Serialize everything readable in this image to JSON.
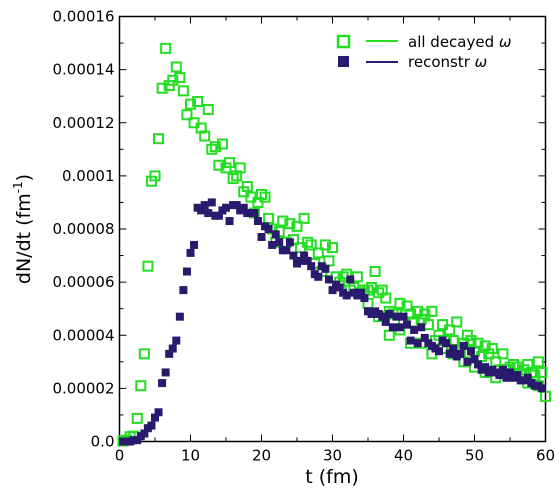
{
  "chart_data": {
    "type": "scatter",
    "xlabel": "t (fm)",
    "ylabel": "dN/dt (fm",
    "ylabel_sup": "-1",
    "ylabel_close": ")",
    "xlim": [
      0,
      60
    ],
    "ylim": [
      0,
      0.00016
    ],
    "x_ticks": [
      0,
      10,
      20,
      30,
      40,
      50,
      60
    ],
    "x_tick_labels": [
      "0",
      "10",
      "20",
      "30",
      "40",
      "50",
      "60"
    ],
    "y_ticks": [
      0,
      2e-05,
      4e-05,
      6e-05,
      8e-05,
      0.0001,
      0.00012,
      0.00014,
      0.00016
    ],
    "y_tick_labels": [
      "0.0",
      "0.00002",
      "0.00004",
      "0.00006",
      "0.00008",
      "0.0001",
      "0.00012",
      "0.00014",
      "0.00016"
    ],
    "grid": false,
    "legend_position": "top-right",
    "series": [
      {
        "name": "all decayed ",
        "name_symbol": "ω",
        "color": "#22dd22",
        "marker": "open-square",
        "x": [
          0.5,
          1.0,
          1.5,
          2.0,
          2.5,
          3.0,
          3.5,
          4.0,
          4.5,
          5.0,
          5.5,
          6.0,
          6.5,
          7.0,
          7.5,
          8.0,
          8.5,
          9.0,
          9.5,
          10.0,
          10.5,
          11.0,
          11.5,
          12.0,
          12.5,
          13.0,
          13.5,
          14.0,
          14.5,
          15.0,
          15.5,
          16.0,
          16.5,
          17.0,
          17.5,
          18.0,
          18.5,
          19.0,
          19.5,
          20.0,
          20.5,
          21.0,
          21.5,
          22.0,
          22.5,
          23.0,
          23.5,
          24.0,
          24.5,
          25.0,
          25.5,
          26.0,
          26.5,
          27.0,
          27.5,
          28.0,
          28.5,
          29.0,
          29.5,
          30.0,
          30.5,
          31.0,
          31.5,
          32.0,
          32.5,
          33.0,
          33.5,
          34.0,
          34.5,
          35.0,
          35.5,
          36.0,
          36.5,
          37.0,
          37.5,
          38.0,
          38.5,
          39.0,
          39.5,
          40.0,
          40.5,
          41.0,
          41.5,
          42.0,
          42.5,
          43.0,
          43.5,
          44.0,
          44.5,
          45.0,
          45.5,
          46.0,
          46.5,
          47.0,
          47.5,
          48.0,
          48.5,
          49.0,
          49.5,
          50.0,
          50.5,
          51.0,
          51.5,
          52.0,
          52.5,
          53.0,
          53.5,
          54.0,
          54.5,
          55.0,
          55.5,
          56.0,
          56.5,
          57.0,
          57.5,
          58.0,
          58.5,
          59.0,
          59.5
        ],
        "y": [
          2e-07,
          5e-07,
          1.8e-06,
          2e-06,
          8.7e-06,
          2.1e-05,
          3.3e-05,
          6.6e-05,
          9.8e-05,
          0.0001,
          0.000114,
          0.000133,
          0.000148,
          0.000134,
          0.000136,
          0.000141,
          0.000137,
          0.000132,
          0.000123,
          0.000127,
          0.00012,
          0.000128,
          0.000118,
          0.000115,
          0.000125,
          0.00011,
          0.000111,
          0.000104,
          0.000112,
          0.000103,
          0.000105,
          9.9e-05,
          0.0001,
          0.000103,
          9.4e-05,
          9.6e-05,
          9.2e-05,
          8.6e-05,
          9e-05,
          9.3e-05,
          9.2e-05,
          8.4e-05,
          8e-05,
          7.5e-05,
          7.9e-05,
          8.3e-05,
          7.5e-05,
          8.2e-05,
          7.6e-05,
          8.1e-05,
          7.3e-05,
          8.4e-05,
          7.5e-05,
          7.4e-05,
          6.7e-05,
          7.1e-05,
          6.4e-05,
          7.4e-05,
          6.8e-05,
          7.3e-05,
          6.2e-05,
          6e-05,
          6.2e-05,
          6.3e-05,
          5.7e-05,
          5.8e-05,
          6.2e-05,
          5.6e-05,
          5.7e-05,
          5.7e-05,
          5.8e-05,
          6.4e-05,
          5.6e-05,
          5.7e-05,
          5.4e-05,
          4.9e-05,
          4.8e-05,
          4.8e-05,
          5.2e-05,
          4.5e-05,
          5.1e-05,
          4.8e-05,
          4.5e-05,
          4.9e-05,
          4.6e-05,
          4.8e-05,
          4.4e-05,
          4.9e-05,
          3.8e-05,
          4e-05,
          4.4e-05,
          3.8e-05,
          4.2e-05,
          3.8e-05,
          4.5e-05,
          3.4e-05,
          3.7e-05,
          4e-05,
          3.8e-05,
          3.4e-05,
          3.7e-05,
          3.2e-05,
          3.6e-05,
          3.3e-05,
          3.5e-05,
          3e-05,
          2.7e-05,
          3.3e-05,
          2.7e-05,
          2.8e-05,
          2.9e-05,
          2.8e-05,
          2.5e-05,
          2.7e-05,
          2.9e-05,
          2.6e-05,
          2.5e-05,
          3e-05,
          2.6e-05
        ],
        "x2": [
          35.0,
          36.5,
          38.0,
          39.5,
          41.0,
          42.5,
          44.0,
          45.5,
          47.0,
          48.5,
          50.0,
          51.5,
          53.0,
          54.5,
          56.0,
          57.5,
          59.0,
          60.0
        ],
        "y2": [
          5.2e-05,
          4.7e-05,
          4e-05,
          4.2e-05,
          3.7e-05,
          3.7e-05,
          3.3e-05,
          3.5e-05,
          3.3e-05,
          3e-05,
          2.8e-05,
          2.6e-05,
          2.4e-05,
          2.7e-05,
          2.5e-05,
          2.2e-05,
          2.1e-05,
          1.7e-05
        ]
      },
      {
        "name": "reconstr ",
        "name_symbol": "ω",
        "color": "#2a1a6e",
        "marker": "filled-square",
        "x": [
          0.5,
          1.0,
          1.5,
          2.0,
          2.5,
          3.0,
          3.5,
          4.0,
          4.5,
          5.0,
          5.5,
          6.0,
          6.5,
          7.0,
          7.5,
          8.0,
          8.5,
          9.0,
          9.5,
          10.0,
          10.5,
          11.0,
          11.5,
          12.0,
          12.5,
          13.0,
          13.5,
          14.0,
          14.5,
          15.0,
          15.5,
          16.0,
          16.5,
          17.0,
          17.5,
          18.0,
          18.5,
          19.0,
          19.5,
          20.0,
          20.5,
          21.0,
          21.5,
          22.0,
          22.5,
          23.0,
          23.5,
          24.0,
          24.5,
          25.0,
          25.5,
          26.0,
          26.5,
          27.0,
          27.5,
          28.0,
          28.5,
          29.0,
          29.5,
          30.0,
          30.5,
          31.0,
          31.5,
          32.0,
          32.5,
          33.0,
          33.5,
          34.0,
          34.5,
          35.0,
          35.5,
          36.0,
          36.5,
          37.0,
          37.5,
          38.0,
          38.5,
          39.0,
          39.5,
          40.0,
          40.5,
          41.0,
          41.5,
          42.0,
          42.5,
          43.0,
          43.5,
          44.0,
          44.5,
          45.0,
          45.5,
          46.0,
          46.5,
          47.0,
          47.5,
          48.0,
          48.5,
          49.0,
          49.5,
          50.0,
          50.5,
          51.0,
          51.5,
          52.0,
          52.5,
          53.0,
          53.5,
          54.0,
          54.5,
          55.0,
          55.5,
          56.0,
          56.5,
          57.0,
          57.5,
          58.0,
          58.5,
          59.0,
          59.5
        ],
        "y": [
          0.0,
          0.0,
          0.0,
          5e-07,
          5e-07,
          2e-06,
          3e-06,
          5e-06,
          6e-06,
          9e-06,
          1.1e-05,
          2.2e-05,
          2.6e-05,
          3.3e-05,
          3.5e-05,
          3.8e-05,
          4.7e-05,
          5.7e-05,
          6.4e-05,
          7.1e-05,
          7.4e-05,
          8.8e-05,
          8.7e-05,
          8.9e-05,
          8.6e-05,
          9e-05,
          8.5e-05,
          8.5e-05,
          8.7e-05,
          8.8e-05,
          8.3e-05,
          8.9e-05,
          8.9e-05,
          8.7e-05,
          8.8e-05,
          8.6e-05,
          8.6e-05,
          8.6e-05,
          8.3e-05,
          7.7e-05,
          8.1e-05,
          8e-05,
          7.4e-05,
          7.8e-05,
          7.5e-05,
          7.2e-05,
          7.2e-05,
          7.5e-05,
          7e-05,
          6.7e-05,
          6.8e-05,
          7e-05,
          6.8e-05,
          6.6e-05,
          6.3e-05,
          6.2e-05,
          6.6e-05,
          6.5e-05,
          6.1e-05,
          5.7e-05,
          5.9e-05,
          5.8e-05,
          5.6e-05,
          5.5e-05,
          6.1e-05,
          5.6e-05,
          5.5e-05,
          5.6e-05,
          5.4e-05,
          4.9e-05,
          4.8e-05,
          4.9e-05,
          4.8e-05,
          4.7e-05,
          4.5e-05,
          4.8e-05,
          4.3e-05,
          4.7e-05,
          4.3e-05,
          4.7e-05,
          4.4e-05,
          3.8e-05,
          4.2e-05,
          3.7e-05,
          4.3e-05,
          3.9e-05,
          3.7e-05,
          3.6e-05,
          3.5e-05,
          3.4e-05,
          3.8e-05,
          3.7e-05,
          3.3e-05,
          3.5e-05,
          3.2e-05,
          3.3e-05,
          3.6e-05,
          3e-05,
          3.4e-05,
          3.1e-05,
          2.9e-05,
          2.7e-05,
          2.8e-05,
          2.6e-05,
          2.7e-05,
          2.6e-05,
          2.5e-05,
          2.7e-05,
          2.4e-05,
          2.6e-05,
          2.4e-05,
          2.5e-05,
          2.3e-05,
          2.3e-05,
          2.4e-05,
          2.2e-05,
          2.1e-05,
          2.1e-05,
          2e-05
        ]
      }
    ]
  }
}
